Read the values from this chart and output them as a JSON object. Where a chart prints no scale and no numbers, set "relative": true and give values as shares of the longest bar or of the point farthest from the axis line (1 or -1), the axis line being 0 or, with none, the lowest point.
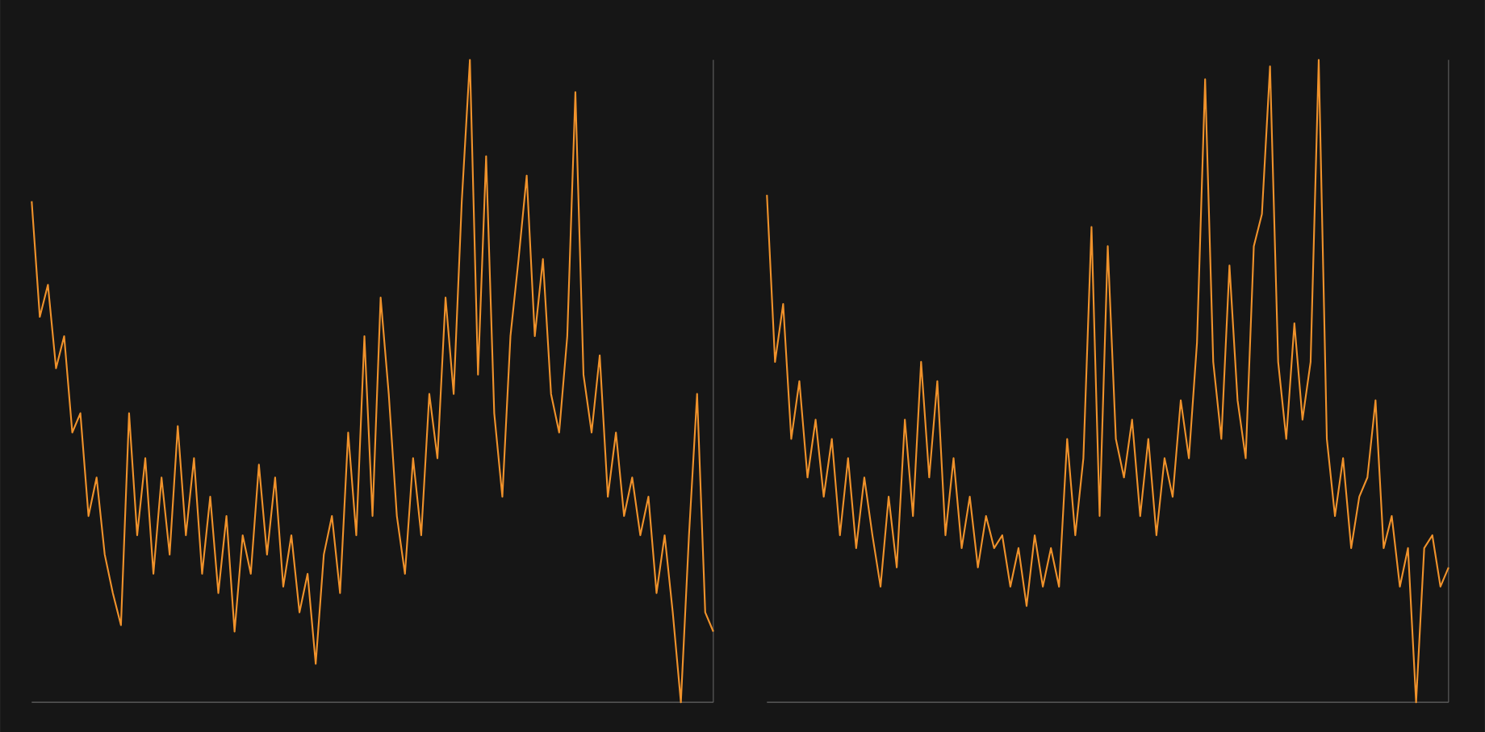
{
  "chart_data": [
    {
      "type": "line",
      "relative": true,
      "color": "#f0922b",
      "categories": [
        null,
        null,
        null,
        null,
        null,
        null,
        null,
        null,
        null,
        null,
        null,
        null,
        null,
        null,
        null,
        null,
        null,
        null,
        null,
        null,
        null,
        null,
        null,
        null,
        null,
        null,
        null,
        null,
        null,
        null,
        null,
        null,
        null,
        null,
        null,
        null,
        null,
        null,
        null,
        null,
        null,
        null,
        null,
        null,
        null,
        null,
        null,
        null,
        null,
        null,
        null,
        null,
        null,
        null,
        null,
        null,
        null,
        null,
        null,
        null,
        null,
        null,
        null,
        null,
        null,
        null,
        null,
        null,
        null,
        null,
        null,
        null,
        null,
        null,
        null,
        null,
        null,
        null,
        null,
        null,
        null,
        null,
        null,
        null,
        null
      ],
      "values": [
        0.78,
        0.6,
        0.65,
        0.52,
        0.57,
        0.42,
        0.45,
        0.29,
        0.35,
        0.23,
        0.17,
        0.12,
        0.45,
        0.26,
        0.38,
        0.2,
        0.35,
        0.23,
        0.43,
        0.26,
        0.38,
        0.2,
        0.32,
        0.17,
        0.29,
        0.11,
        0.26,
        0.2,
        0.37,
        0.23,
        0.35,
        0.18,
        0.26,
        0.14,
        0.2,
        0.06,
        0.23,
        0.29,
        0.17,
        0.42,
        0.26,
        0.57,
        0.29,
        0.63,
        0.48,
        0.29,
        0.2,
        0.38,
        0.26,
        0.48,
        0.38,
        0.63,
        0.48,
        0.78,
        1,
        0.51,
        0.85,
        0.45,
        0.32,
        0.57,
        0.69,
        0.82,
        0.57,
        0.69,
        0.48,
        0.42,
        0.57,
        0.95,
        0.51,
        0.42,
        0.54,
        0.32,
        0.42,
        0.29,
        0.35,
        0.26,
        0.32,
        0.17,
        0.26,
        0.14,
        0,
        0.26,
        0.48,
        0.14,
        0.11
      ]
    },
    {
      "type": "line",
      "relative": true,
      "color": "#f0922b",
      "categories": [
        null,
        null,
        null,
        null,
        null,
        null,
        null,
        null,
        null,
        null,
        null,
        null,
        null,
        null,
        null,
        null,
        null,
        null,
        null,
        null,
        null,
        null,
        null,
        null,
        null,
        null,
        null,
        null,
        null,
        null,
        null,
        null,
        null,
        null,
        null,
        null,
        null,
        null,
        null,
        null,
        null,
        null,
        null,
        null,
        null,
        null,
        null,
        null,
        null,
        null,
        null,
        null,
        null,
        null,
        null,
        null,
        null,
        null,
        null,
        null,
        null,
        null,
        null,
        null,
        null,
        null,
        null,
        null,
        null,
        null,
        null,
        null,
        null,
        null,
        null,
        null,
        null,
        null,
        null,
        null,
        null,
        null,
        null,
        null,
        null
      ],
      "values": [
        0.79,
        0.53,
        0.62,
        0.41,
        0.5,
        0.35,
        0.44,
        0.32,
        0.41,
        0.26,
        0.38,
        0.24,
        0.35,
        0.26,
        0.18,
        0.32,
        0.21,
        0.44,
        0.29,
        0.53,
        0.35,
        0.5,
        0.26,
        0.38,
        0.24,
        0.32,
        0.21,
        0.29,
        0.24,
        0.26,
        0.18,
        0.24,
        0.15,
        0.26,
        0.18,
        0.24,
        0.18,
        0.41,
        0.26,
        0.38,
        0.74,
        0.29,
        0.71,
        0.41,
        0.35,
        0.44,
        0.29,
        0.41,
        0.26,
        0.38,
        0.32,
        0.47,
        0.38,
        0.56,
        0.97,
        0.53,
        0.41,
        0.68,
        0.47,
        0.38,
        0.71,
        0.76,
        0.99,
        0.53,
        0.41,
        0.59,
        0.44,
        0.53,
        1,
        0.41,
        0.29,
        0.38,
        0.24,
        0.32,
        0.35,
        0.47,
        0.24,
        0.29,
        0.18,
        0.24,
        0,
        0.24,
        0.26,
        0.18,
        0.21
      ]
    }
  ]
}
